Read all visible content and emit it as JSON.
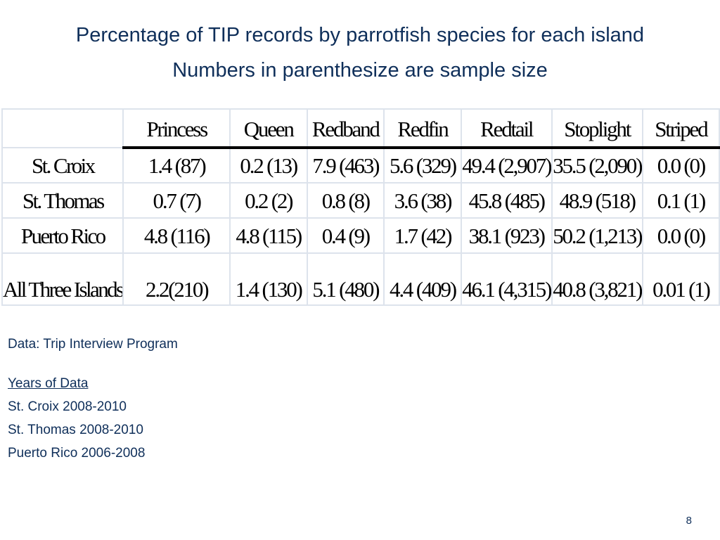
{
  "title": {
    "line1": "Percentage of TIP records by parrotfish species for each island",
    "line2": "Numbers in parenthesize are sample size"
  },
  "table": {
    "columns": [
      "",
      "Princess",
      "Queen",
      "Redband",
      "Redfin",
      "Redtail",
      "Stoplight",
      "Striped"
    ],
    "rows": [
      {
        "label": "St. Croix",
        "cells": [
          "1.4 (87)",
          "0.2 (13)",
          "7.9 (463)",
          "5.6 (329)",
          "49.4 (2,907)",
          "35.5 (2,090)",
          "0.0 (0)"
        ]
      },
      {
        "label": "St. Thomas",
        "cells": [
          "0.7 (7)",
          "0.2 (2)",
          "0.8 (8)",
          "3.6 (38)",
          "45.8 (485)",
          "48.9 (518)",
          "0.1 (1)"
        ]
      },
      {
        "label": "Puerto Rico",
        "cells": [
          "4.8 (116)",
          "4.8 (115)",
          "0.4 (9)",
          "1.7 (42)",
          "38.1 (923)",
          "50.2 (1,213)",
          "0.0 (0)"
        ]
      },
      {
        "label": "All Three Islands",
        "cells": [
          "2.2(210)",
          "1.4 (130)",
          "5.1 (480)",
          "4.4 (409)",
          "46.1 (4,315)",
          "40.8 (3,821)",
          "0.01 (1)"
        ]
      }
    ]
  },
  "source": "Data: Trip Interview Program",
  "years": {
    "header": "Years of Data",
    "items": [
      "St. Croix 2008-2010",
      "St. Thomas 2008-2010",
      "Puerto Rico 2006-2008"
    ]
  },
  "page_number": "8",
  "colors": {
    "title_text": "#0f2f5a",
    "grid": "#dde3ec",
    "header_rule": "#000000"
  }
}
